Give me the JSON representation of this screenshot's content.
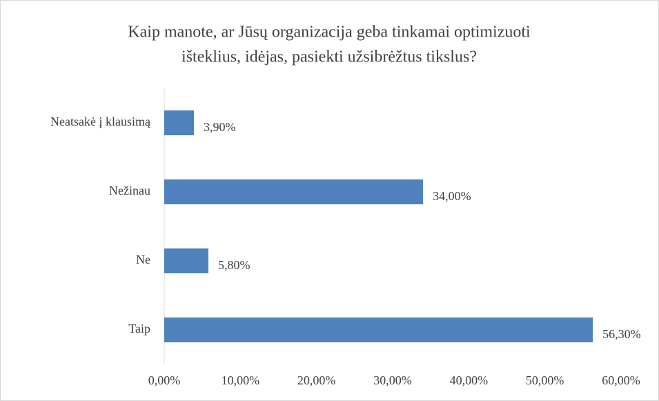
{
  "chart_data": {
    "type": "hbar",
    "title": [
      "Kaip manote, ar Jūsų organizacija geba tinkamai optimizuoti",
      "išteklius, idėjas, pasiekti užsibrėžtus tikslus?"
    ],
    "categories": [
      "Neatsakė į klausimą",
      "Nežinau",
      "Ne",
      "Taip"
    ],
    "values": [
      3.9,
      34,
      5.8,
      56.3
    ],
    "value_labels": [
      "3,90%",
      "34,00%",
      "5,80%",
      "56,30%"
    ],
    "color": "#4f81bd",
    "xlim": [
      0,
      60
    ],
    "xticks": [
      {
        "value": 0,
        "label": "0,00%"
      },
      {
        "value": 10,
        "label": "10,00%"
      },
      {
        "value": 20,
        "label": "20,00%"
      },
      {
        "value": 30,
        "label": "30,00%"
      },
      {
        "value": 40,
        "label": "40,00%"
      },
      {
        "value": 50,
        "label": "50,00%"
      },
      {
        "value": 60,
        "label": "60,00%"
      }
    ],
    "grid": false
  }
}
